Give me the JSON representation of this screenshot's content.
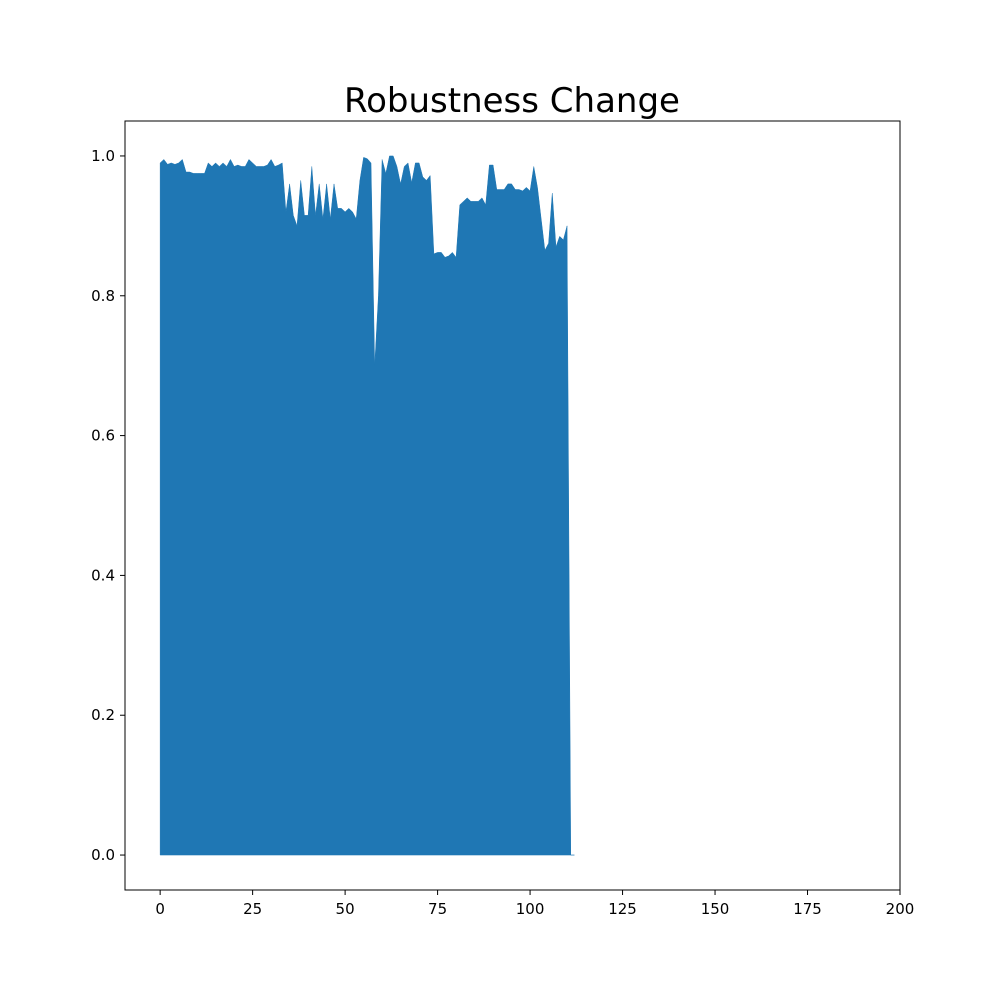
{
  "chart_data": {
    "type": "area",
    "title": "Robustness Change",
    "xlabel": "",
    "ylabel": "",
    "xlim": [
      -9.5,
      200
    ],
    "ylim": [
      -0.05,
      1.05
    ],
    "x_ticks": [
      0,
      25,
      50,
      75,
      100,
      125,
      150,
      175,
      200
    ],
    "x_tick_labels": [
      "0",
      "25",
      "50",
      "75",
      "100",
      "125",
      "150",
      "175",
      "200"
    ],
    "y_ticks": [
      0.0,
      0.2,
      0.4,
      0.6,
      0.8,
      1.0
    ],
    "y_tick_labels": [
      "0.0",
      "0.2",
      "0.4",
      "0.6",
      "0.8",
      "1.0"
    ],
    "grid": false,
    "legend": "none",
    "series": [
      {
        "color": "#1f77b4",
        "baseline": 0,
        "x": [
          0,
          1,
          2,
          3,
          4,
          5,
          6,
          7,
          8,
          9,
          10,
          11,
          12,
          13,
          14,
          15,
          16,
          17,
          18,
          19,
          20,
          21,
          22,
          23,
          24,
          25,
          26,
          27,
          28,
          29,
          30,
          31,
          32,
          33,
          34,
          35,
          36,
          37,
          38,
          39,
          40,
          41,
          42,
          43,
          44,
          45,
          46,
          47,
          48,
          49,
          50,
          51,
          52,
          53,
          54,
          55,
          56,
          57,
          58,
          59,
          60,
          61,
          62,
          63,
          64,
          65,
          66,
          67,
          68,
          69,
          70,
          71,
          72,
          73,
          74,
          75,
          76,
          77,
          78,
          79,
          80,
          81,
          82,
          83,
          84,
          85,
          86,
          87,
          88,
          89,
          90,
          91,
          92,
          93,
          94,
          95,
          96,
          97,
          98,
          99,
          100,
          101,
          102,
          103,
          104,
          105,
          106,
          107,
          108,
          109,
          110,
          111,
          112
        ],
        "values": [
          0.99,
          0.995,
          0.988,
          0.99,
          0.988,
          0.99,
          0.995,
          0.977,
          0.977,
          0.975,
          0.975,
          0.975,
          0.975,
          0.99,
          0.985,
          0.99,
          0.985,
          0.99,
          0.985,
          0.995,
          0.985,
          0.987,
          0.985,
          0.985,
          0.995,
          0.99,
          0.985,
          0.985,
          0.985,
          0.987,
          0.995,
          0.985,
          0.987,
          0.99,
          0.92,
          0.96,
          0.915,
          0.9,
          0.965,
          0.915,
          0.915,
          0.985,
          0.915,
          0.96,
          0.91,
          0.96,
          0.91,
          0.96,
          0.925,
          0.925,
          0.92,
          0.925,
          0.92,
          0.91,
          0.965,
          0.998,
          0.996,
          0.99,
          0.7,
          0.8,
          0.995,
          0.975,
          1.0,
          1.0,
          0.985,
          0.96,
          0.985,
          0.99,
          0.962,
          0.99,
          0.99,
          0.97,
          0.965,
          0.972,
          0.86,
          0.862,
          0.862,
          0.855,
          0.857,
          0.862,
          0.855,
          0.93,
          0.935,
          0.94,
          0.935,
          0.935,
          0.935,
          0.94,
          0.93,
          0.987,
          0.987,
          0.952,
          0.952,
          0.952,
          0.96,
          0.96,
          0.952,
          0.952,
          0.95,
          0.955,
          0.95,
          0.985,
          0.955,
          0.91,
          0.865,
          0.875,
          0.947,
          0.87,
          0.885,
          0.88,
          0.9,
          0.0,
          0.0
        ]
      }
    ]
  }
}
